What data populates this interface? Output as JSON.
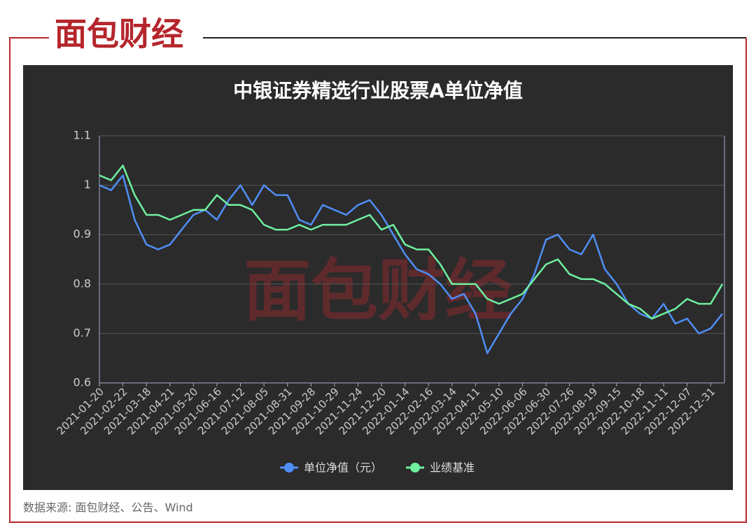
{
  "logo": "面包财经",
  "watermark": "面包财经",
  "chart_data": {
    "type": "line",
    "title": "中银证券精选行业股票A单位净值",
    "categories": [
      "2021-01-20",
      null,
      "2021-02-22",
      null,
      "2021-03-18",
      null,
      "2021-04-21",
      null,
      "2021-05-20",
      null,
      "2021-06-16",
      null,
      "2021-07-12",
      null,
      "2021-08-05",
      null,
      "2021-08-31",
      null,
      "2021-09-28",
      null,
      "2021-10-29",
      null,
      "2021-11-24",
      null,
      "2021-12-20",
      null,
      "2022-01-14",
      null,
      "2022-02-16",
      null,
      "2022-03-14",
      null,
      "2022-04-11",
      null,
      "2022-05-10",
      null,
      "2022-06-06",
      null,
      "2022-06-30",
      null,
      "2022-07-26",
      null,
      "2022-08-19",
      null,
      "2022-09-15",
      null,
      "2022-10-18",
      null,
      "2022-11-11",
      null,
      "2022-12-07",
      null,
      "2022-12-31",
      null
    ],
    "series": [
      {
        "name": "单位净值（元）",
        "color": "#4f8ef5",
        "values": [
          1.0,
          0.99,
          1.02,
          0.93,
          0.88,
          0.87,
          0.88,
          0.91,
          0.94,
          0.95,
          0.93,
          0.97,
          1.0,
          0.96,
          1.0,
          0.98,
          0.98,
          0.93,
          0.92,
          0.96,
          0.95,
          0.94,
          0.96,
          0.97,
          0.94,
          0.9,
          0.86,
          0.83,
          0.82,
          0.8,
          0.77,
          0.78,
          0.74,
          0.66,
          0.7,
          0.74,
          0.77,
          0.82,
          0.89,
          0.9,
          0.87,
          0.86,
          0.9,
          0.83,
          0.8,
          0.76,
          0.74,
          0.73,
          0.76,
          0.72,
          0.73,
          0.7,
          0.71,
          0.74
        ]
      },
      {
        "name": "业绩基准",
        "color": "#6ff0a0",
        "values": [
          1.02,
          1.01,
          1.04,
          0.98,
          0.94,
          0.94,
          0.93,
          0.94,
          0.95,
          0.95,
          0.98,
          0.96,
          0.96,
          0.95,
          0.92,
          0.91,
          0.91,
          0.92,
          0.91,
          0.92,
          0.92,
          0.92,
          0.93,
          0.94,
          0.91,
          0.92,
          0.88,
          0.87,
          0.87,
          0.84,
          0.8,
          0.8,
          0.8,
          0.77,
          0.76,
          0.77,
          0.78,
          0.81,
          0.84,
          0.85,
          0.82,
          0.81,
          0.81,
          0.8,
          0.78,
          0.76,
          0.75,
          0.73,
          0.74,
          0.75,
          0.77,
          0.76,
          0.76,
          0.8
        ]
      }
    ],
    "ylim": [
      0.6,
      1.1
    ],
    "yticks": [
      0.6,
      0.7,
      0.8,
      0.9,
      1,
      1.1
    ],
    "grid": true
  },
  "source": "数据来源: 面包财经、公告、Wind"
}
